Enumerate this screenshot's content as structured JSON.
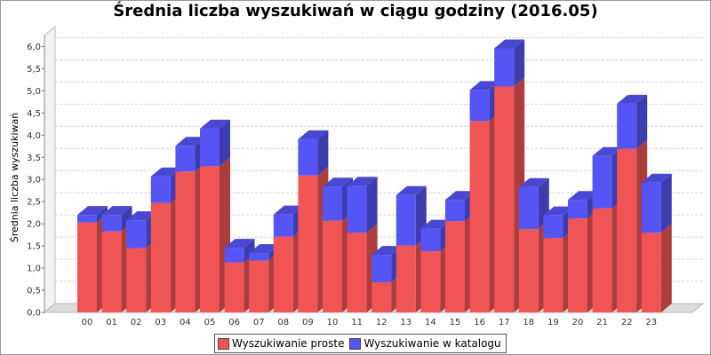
{
  "chart_data": {
    "type": "bar",
    "stacked": true,
    "style": "3d",
    "title": "Średnia liczba wyszukiwań w ciągu godziny (2016.05)",
    "xlabel": "",
    "ylabel": "Średnia liczba wyszukiwań",
    "ylim": [
      0,
      6.25
    ],
    "yticks": [
      "0,0",
      "0,5",
      "1,0",
      "1,5",
      "2,0",
      "2,5",
      "3,0",
      "3,5",
      "4,0",
      "4,5",
      "5,0",
      "5,5",
      "6,0"
    ],
    "grid": true,
    "legend_position": "bottom",
    "categories": [
      "00",
      "01",
      "02",
      "03",
      "04",
      "05",
      "06",
      "07",
      "08",
      "09",
      "10",
      "11",
      "12",
      "13",
      "14",
      "15",
      "16",
      "17",
      "18",
      "19",
      "20",
      "21",
      "22",
      "23"
    ],
    "series": [
      {
        "name": "Wyszukiwanie proste",
        "color": "#f05454",
        "values": [
          2.03,
          1.83,
          1.45,
          2.47,
          3.18,
          3.3,
          1.13,
          1.17,
          1.71,
          3.09,
          2.07,
          1.8,
          0.68,
          1.51,
          1.38,
          2.06,
          4.32,
          5.1,
          1.88,
          1.68,
          2.12,
          2.35,
          3.69,
          1.8
        ]
      },
      {
        "name": "Wyszukiwanie w katalogu",
        "color": "#5555f5",
        "values": [
          0.17,
          0.37,
          0.63,
          0.6,
          0.58,
          0.85,
          0.33,
          0.17,
          0.5,
          0.82,
          0.77,
          1.06,
          0.62,
          1.14,
          0.51,
          0.48,
          0.7,
          0.86,
          0.95,
          0.51,
          0.42,
          1.18,
          1.02,
          1.13
        ]
      }
    ]
  }
}
